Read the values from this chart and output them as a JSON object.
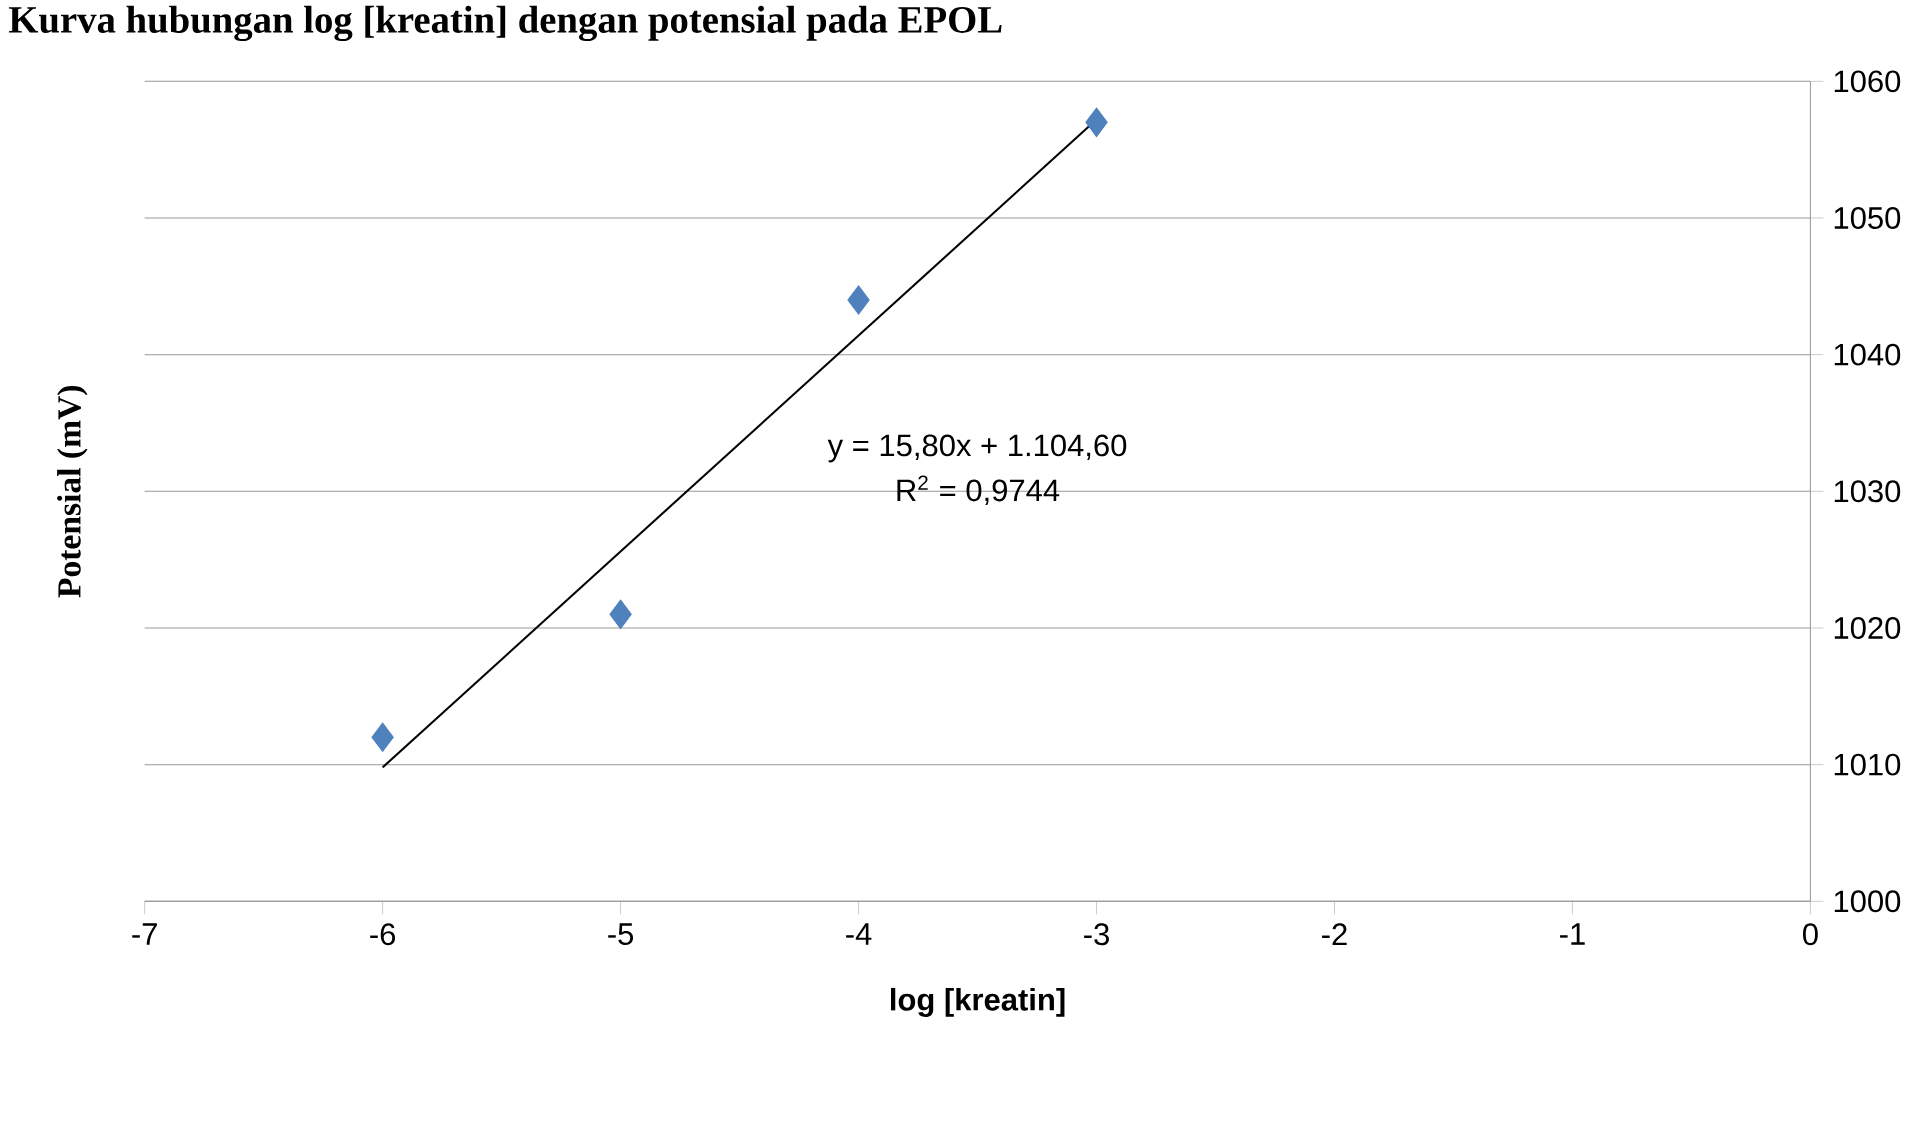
{
  "chart_data": {
    "type": "scatter",
    "title": "Kurva hubungan log [kreatin] dengan potensial pada EPOL",
    "xlabel": "log [kreatin]",
    "ylabel": "Potensial (mV)",
    "series": [
      {
        "type": "scatter",
        "color": "#4f81bd",
        "marker": "diamond",
        "x": [
          -6,
          -5,
          -4,
          -3
        ],
        "values": [
          1012,
          1021,
          1044,
          1057
        ]
      },
      {
        "type": "line",
        "color": "#000000",
        "marker": "none",
        "x": [
          -6,
          -3
        ],
        "values": [
          1009.8,
          1057.2
        ]
      }
    ],
    "xlim": [
      -7,
      0
    ],
    "ylim": [
      1000,
      1060
    ],
    "xticks": [
      -7,
      -6,
      -5,
      -4,
      -3,
      -2,
      -1,
      0
    ],
    "yticks": [
      1000,
      1010,
      1020,
      1030,
      1040,
      1050,
      1060
    ],
    "grid": "y",
    "annotations": [
      "y = 15,80x + 1.104,60",
      "R$^{2}$ = 0,9744"
    ]
  }
}
